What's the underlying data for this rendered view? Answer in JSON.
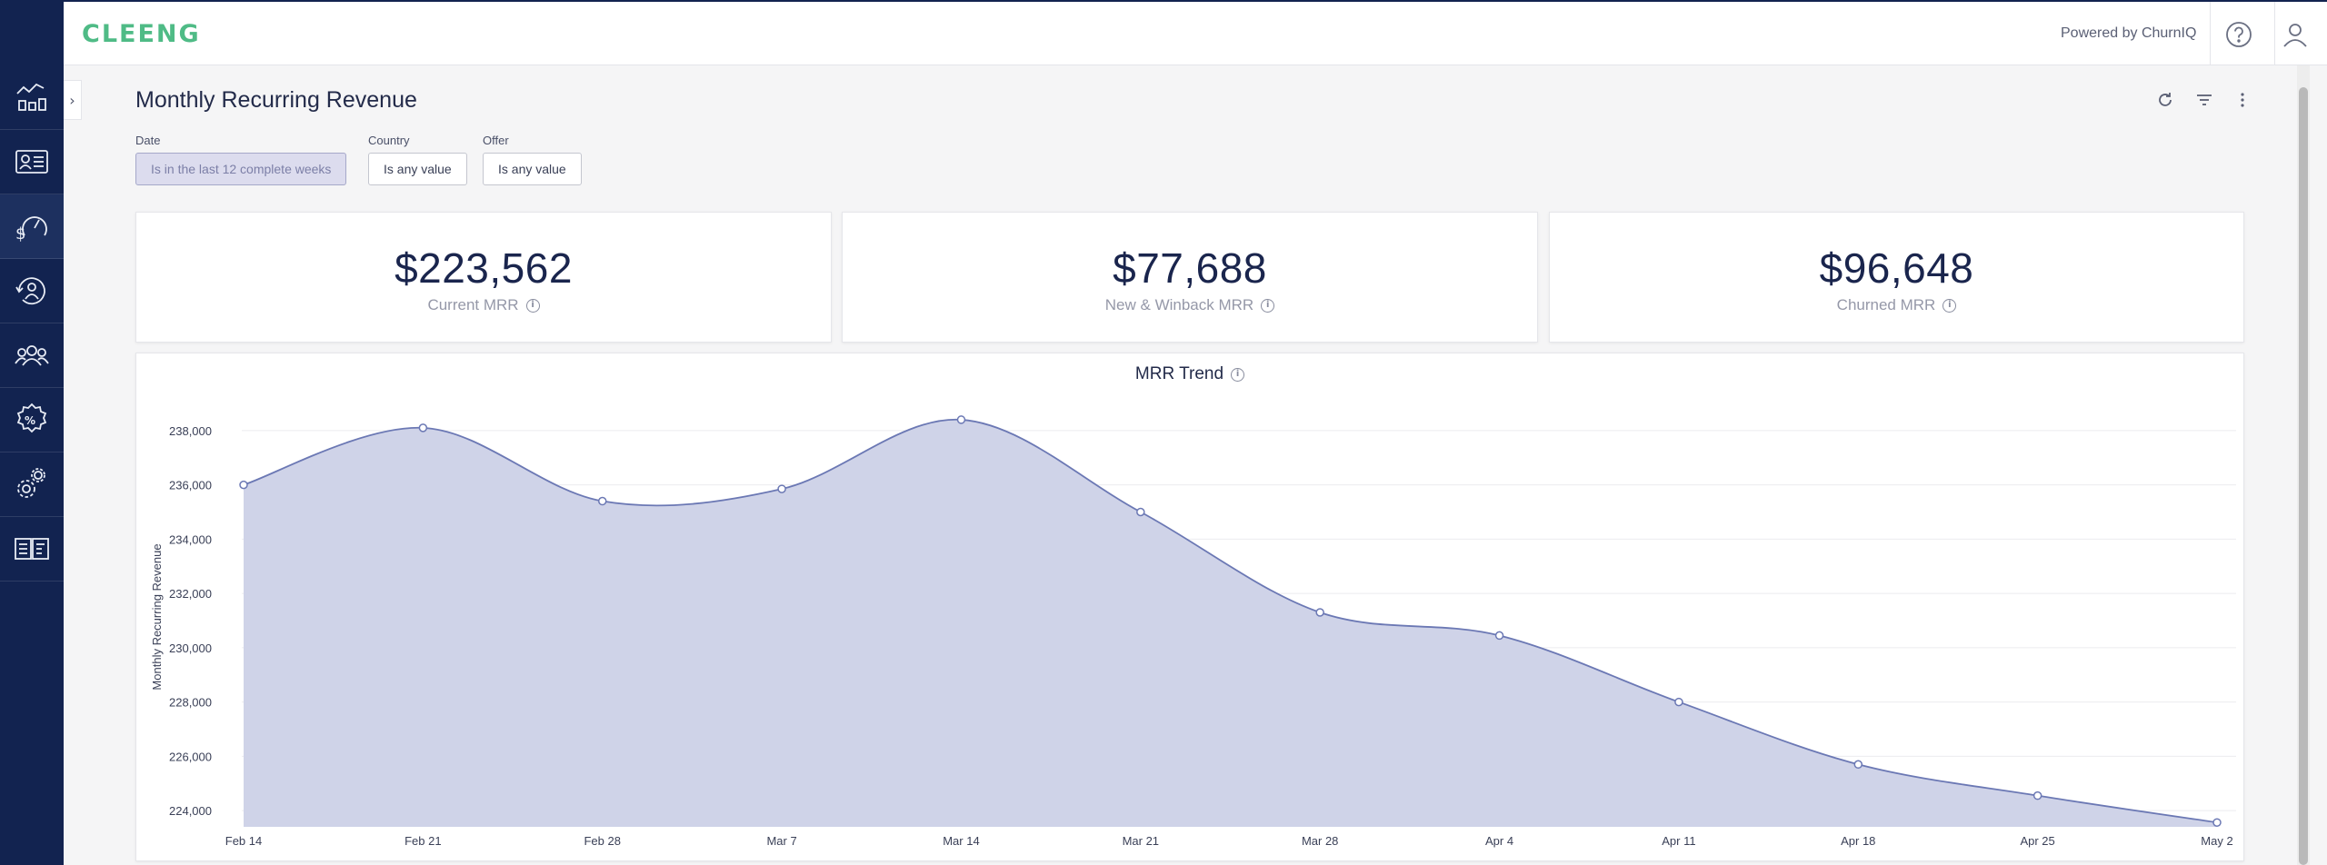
{
  "app": {
    "logo_text": "CLEENG",
    "powered_by": "Powered by ChurnIQ"
  },
  "sidebar": {
    "items": [
      {
        "icon": "analytics-chart-icon",
        "active": false
      },
      {
        "icon": "subscriber-card-icon",
        "active": false
      },
      {
        "icon": "revenue-gauge-icon",
        "active": true
      },
      {
        "icon": "retention-cycle-icon",
        "active": false
      },
      {
        "icon": "users-group-icon",
        "active": false
      },
      {
        "icon": "discount-badge-icon",
        "active": false
      },
      {
        "icon": "settings-gears-icon",
        "active": false
      },
      {
        "icon": "documentation-book-icon",
        "active": false
      }
    ]
  },
  "page": {
    "title": "Monthly Recurring Revenue"
  },
  "filters": [
    {
      "label": "Date",
      "value": "Is in the last 12 complete weeks",
      "active": true
    },
    {
      "label": "Country",
      "value": "Is any value",
      "active": false
    },
    {
      "label": "Offer",
      "value": "Is any value",
      "active": false
    }
  ],
  "kpis": [
    {
      "value": "$223,562",
      "label": "Current MRR"
    },
    {
      "value": "$77,688",
      "label": "New & Winback MRR"
    },
    {
      "value": "$96,648",
      "label": "Churned MRR"
    }
  ],
  "chart_title": "MRR Trend",
  "chart_data": {
    "type": "area",
    "title": "MRR Trend",
    "xlabel": "",
    "ylabel": "Monthly Recurring Revenue",
    "categories": [
      "Feb 14",
      "Feb 21",
      "Feb 28",
      "Mar 7",
      "Mar 14",
      "Mar 21",
      "Mar 28",
      "Apr 4",
      "Apr 11",
      "Apr 18",
      "Apr 25",
      "May 2"
    ],
    "values": [
      236000,
      238100,
      235400,
      235850,
      238400,
      235000,
      231300,
      230450,
      228000,
      225700,
      224550,
      223560
    ],
    "yticks": [
      224000,
      226000,
      228000,
      230000,
      232000,
      234000,
      236000,
      238000
    ],
    "ylim": [
      223400,
      239000
    ],
    "grid": true,
    "colors": {
      "line": "#6b78b4",
      "fill": "#cfd3e8",
      "grid": "#ececef"
    }
  }
}
